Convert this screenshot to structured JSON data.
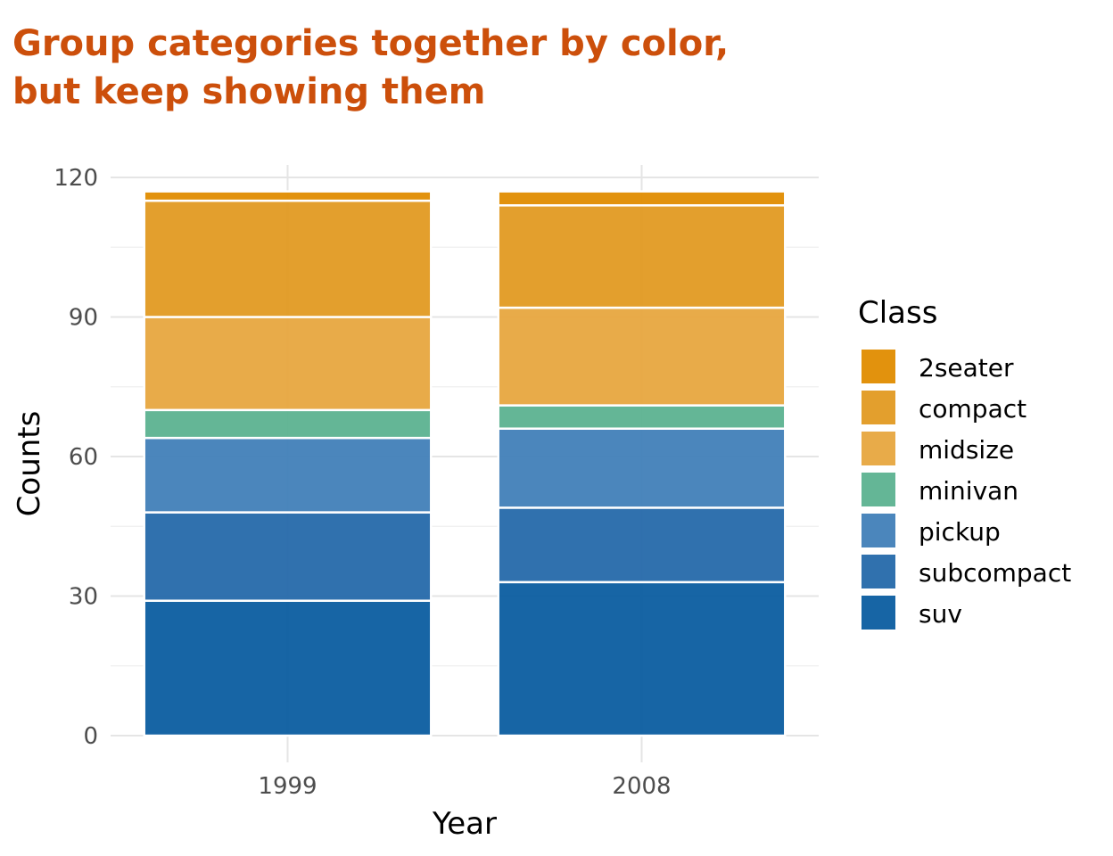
{
  "chart_data": {
    "type": "bar",
    "stacked": true,
    "title_lines": [
      "Group categories together by color,",
      "but keep showing them"
    ],
    "xlabel": "Year",
    "ylabel": "Counts",
    "categories": [
      "1999",
      "2008"
    ],
    "ylim": [
      0,
      120
    ],
    "yticks": [
      0,
      30,
      60,
      90,
      120
    ],
    "grid": true,
    "legend": {
      "title": "Class",
      "position": "right"
    },
    "series": [
      {
        "name": "2seater",
        "color": "#e08c00",
        "values": [
          2,
          3
        ]
      },
      {
        "name": "compact",
        "color": "#e29a22",
        "values": [
          25,
          22
        ]
      },
      {
        "name": "midsize",
        "color": "#e7a73f",
        "values": [
          20,
          21
        ]
      },
      {
        "name": "minivan",
        "color": "#5cb290",
        "values": [
          6,
          5
        ]
      },
      {
        "name": "pickup",
        "color": "#4180b8",
        "values": [
          16,
          17
        ]
      },
      {
        "name": "subcompact",
        "color": "#2569aa",
        "values": [
          19,
          16
        ]
      },
      {
        "name": "suv",
        "color": "#0b5da0",
        "values": [
          29,
          33
        ]
      }
    ]
  }
}
